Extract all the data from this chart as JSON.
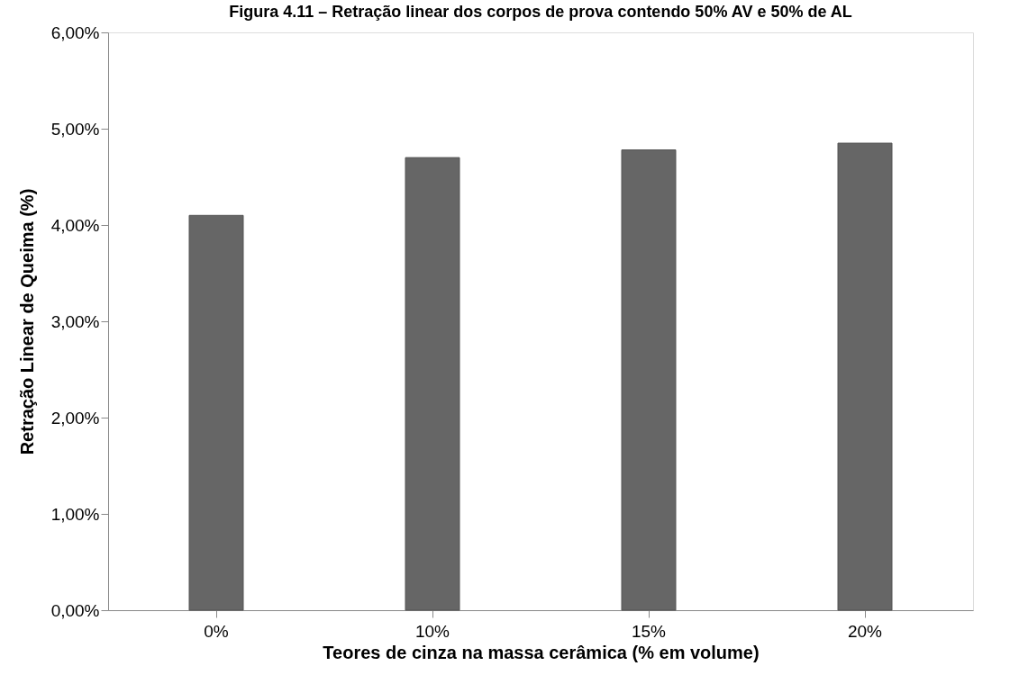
{
  "chart_data": {
    "type": "bar",
    "title": "Figura 4.11 – Retração linear dos corpos de prova contendo 50% AV e 50% de AL",
    "xlabel": "Teores de cinza na massa cerâmica (% em volume)",
    "ylabel": "Retração Linear de Queima (%)",
    "categories": [
      "0%",
      "10%",
      "15%",
      "20%"
    ],
    "values": [
      4.1,
      4.7,
      4.78,
      4.85
    ],
    "color": "#666666",
    "ylim": [
      0,
      6
    ],
    "yticks": [
      {
        "value": 0,
        "label": "0,00%"
      },
      {
        "value": 1,
        "label": "1,00%"
      },
      {
        "value": 2,
        "label": "2,00%"
      },
      {
        "value": 3,
        "label": "3,00%"
      },
      {
        "value": 4,
        "label": "4,00%"
      },
      {
        "value": 5,
        "label": "5,00%"
      },
      {
        "value": 6,
        "label": "6,00%"
      }
    ],
    "grid": false
  }
}
